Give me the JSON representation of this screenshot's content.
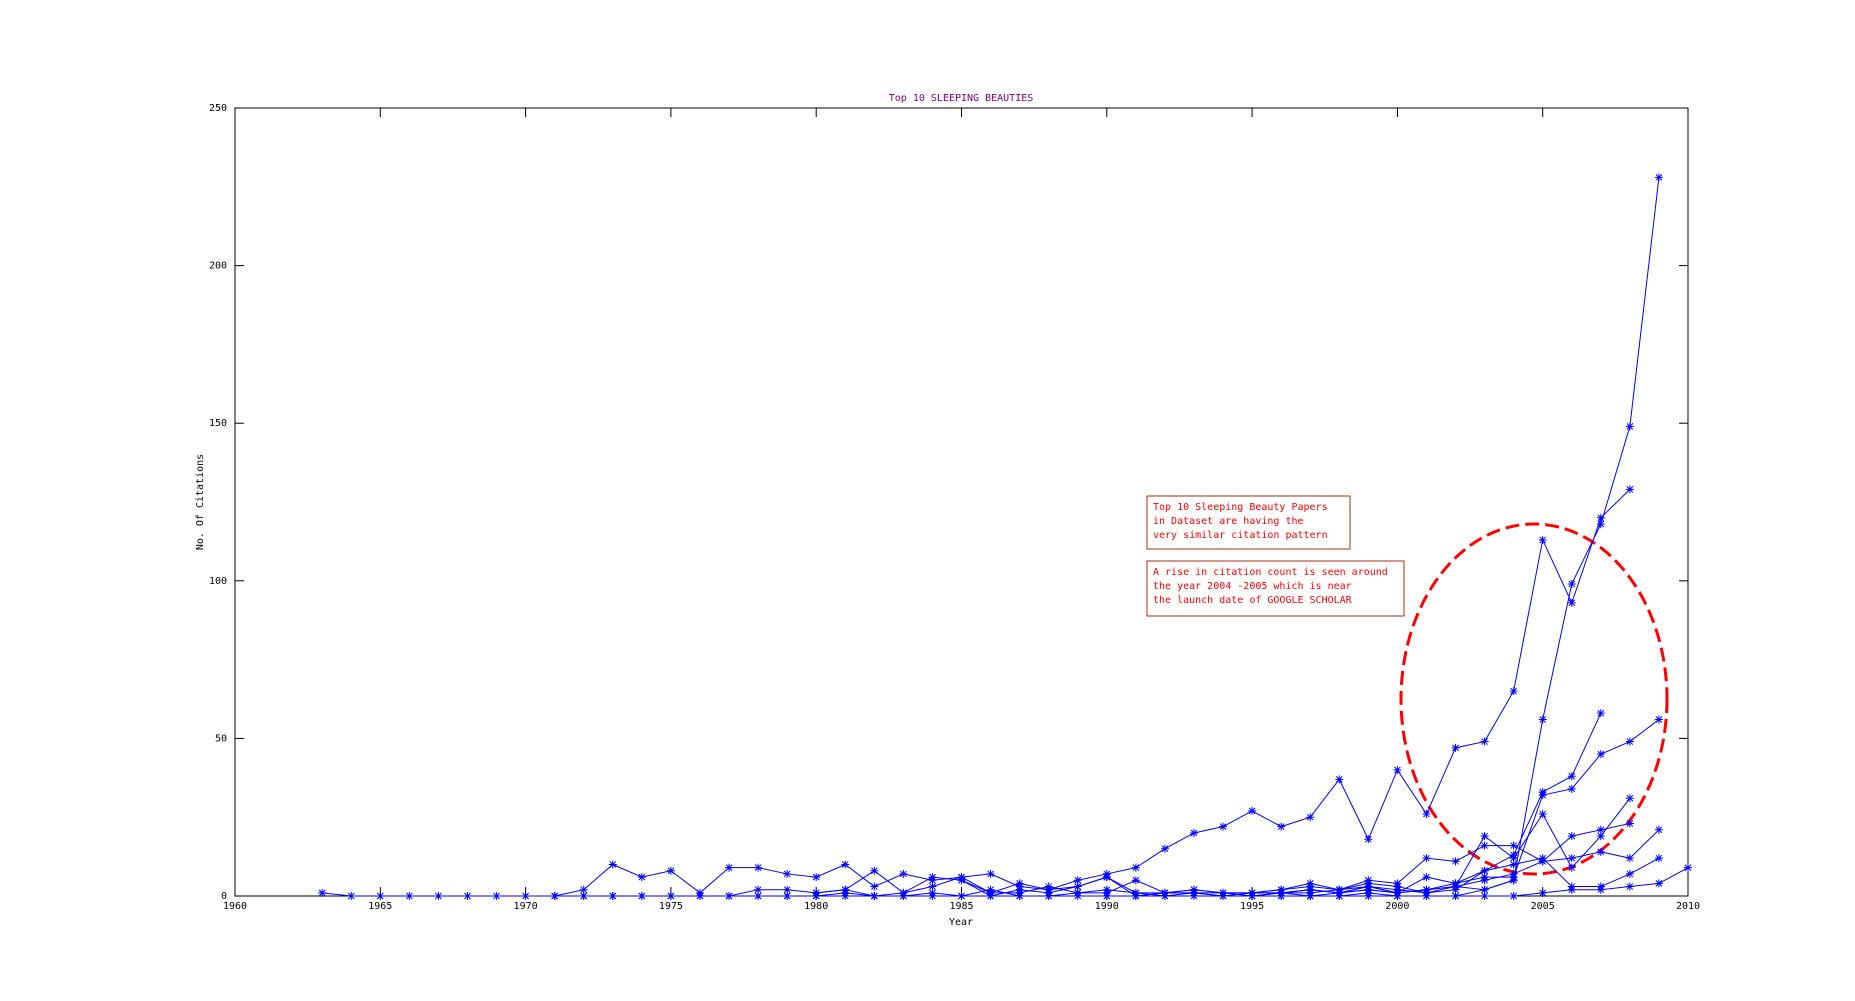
{
  "chart_data": {
    "type": "line",
    "title": "Top 10 SLEEPING BEAUTIES",
    "x_label": "Year",
    "y_label": "No. Of Citations",
    "xlim": [
      1960,
      2010
    ],
    "xticks": [
      1960,
      1965,
      1970,
      1975,
      1980,
      1985,
      1990,
      1995,
      2000,
      2005,
      2010
    ],
    "ylim": [
      0,
      250
    ],
    "yticks": [
      0,
      50,
      100,
      150,
      200,
      250
    ],
    "grid": false,
    "marker": "*",
    "series": [
      {
        "color": "#0000ff",
        "x": [
          1963,
          1964,
          1965,
          1966,
          1967,
          1968,
          1969,
          1970,
          1971,
          1972,
          1973,
          1974,
          1975,
          1976,
          1977,
          1978,
          1979,
          1980,
          1981,
          1982,
          1983,
          1984,
          1985,
          1986,
          1987,
          1988,
          1989,
          1990,
          1991,
          1992,
          1993,
          1994,
          1995,
          1996,
          1997,
          1998,
          1999,
          2000,
          2001,
          2002,
          2003,
          2004,
          2005,
          2006,
          2007,
          2008
        ],
        "values": [
          1,
          0,
          0,
          0,
          0,
          0,
          0,
          0,
          0,
          2,
          10,
          6,
          8,
          1,
          9,
          9,
          7,
          6,
          10,
          3,
          7,
          5,
          6,
          7,
          3,
          2,
          5,
          7,
          9,
          15,
          20,
          22,
          27,
          22,
          25,
          37,
          18,
          40,
          26,
          47,
          49,
          65,
          113,
          93,
          120,
          129
        ]
      },
      {
        "color": "#0000ff",
        "x": [
          1971,
          1972,
          1973,
          1974,
          1975,
          1976,
          1977,
          1978,
          1979,
          1980,
          1981,
          1982,
          1983,
          1984,
          1985,
          1986,
          1987,
          1988,
          1989,
          1990,
          1991,
          1992,
          1993,
          1994,
          1995,
          1996,
          1997,
          1998,
          1999,
          2000,
          2001,
          2002,
          2003,
          2004,
          2005,
          2006,
          2007,
          2008,
          2009
        ],
        "values": [
          0,
          0,
          0,
          0,
          0,
          0,
          0,
          0,
          0,
          0,
          1,
          0,
          0,
          1,
          0,
          2,
          0,
          0,
          1,
          2,
          1,
          0,
          1,
          1,
          0,
          1,
          1,
          2,
          3,
          2,
          1,
          3,
          2,
          5,
          56,
          99,
          118,
          149,
          228
        ]
      },
      {
        "color": "#0000ff",
        "x": [
          1985,
          1986,
          1987,
          1988,
          1989,
          1990,
          1991,
          1992,
          1993,
          1994,
          1995,
          1996,
          1997,
          1998,
          1999,
          2000,
          2001,
          2002,
          2003,
          2004,
          2005,
          2006,
          2007
        ],
        "values": [
          5,
          1,
          4,
          2,
          3,
          6,
          0,
          1,
          2,
          1,
          1,
          2,
          3,
          2,
          4,
          3,
          1,
          2,
          8,
          13,
          33,
          38,
          58
        ]
      },
      {
        "color": "#0000ff",
        "x": [
          1990,
          1991,
          1992,
          1993,
          1994,
          1995,
          1996,
          1997,
          1998,
          1999,
          2000,
          2001,
          2002,
          2003,
          2004,
          2005,
          2006,
          2007,
          2008,
          2009
        ],
        "values": [
          0,
          0,
          1,
          1,
          0,
          1,
          1,
          0,
          1,
          2,
          1,
          2,
          4,
          6,
          6,
          32,
          34,
          45,
          49,
          56
        ]
      },
      {
        "color": "#0000ff",
        "x": [
          1980,
          1981,
          1982,
          1983,
          1984,
          1985,
          1986,
          1987,
          1988,
          1989,
          1990,
          1991,
          1992,
          1993,
          1994,
          1995,
          1996,
          1997,
          1998,
          1999,
          2000,
          2001,
          2002,
          2003,
          2004,
          2005,
          2006,
          2007,
          2008
        ],
        "values": [
          1,
          2,
          0,
          1,
          6,
          5,
          0,
          2,
          1,
          3,
          6,
          1,
          1,
          2,
          1,
          1,
          1,
          2,
          1,
          3,
          1,
          2,
          3,
          19,
          12,
          26,
          9,
          19,
          31
        ]
      },
      {
        "color": "#0000ff",
        "x": [
          1995,
          1996,
          1997,
          1998,
          1999,
          2000,
          2001,
          2002,
          2003,
          2004,
          2005,
          2006,
          2007,
          2008
        ],
        "values": [
          0,
          1,
          2,
          1,
          2,
          1,
          2,
          3,
          5,
          7,
          11,
          19,
          21,
          23
        ]
      },
      {
        "color": "#0000ff",
        "x": [
          1995,
          1996,
          1997,
          1998,
          1999,
          2000,
          2001,
          2002,
          2003,
          2004,
          2005,
          2006,
          2007,
          2008,
          2009
        ],
        "values": [
          1,
          2,
          4,
          2,
          5,
          4,
          12,
          11,
          16,
          16,
          11,
          12,
          14,
          12,
          21
        ]
      },
      {
        "color": "#0000ff",
        "x": [
          1977,
          1978,
          1979,
          1980,
          1981,
          1982,
          1983,
          1984,
          1985,
          1986,
          1987,
          1988,
          1989,
          1990,
          1991,
          1992,
          1993,
          1994,
          1995,
          1996,
          1997,
          1998,
          1999,
          2000,
          2001,
          2002,
          2003,
          2004,
          2005,
          2006,
          2007,
          2008,
          2009
        ],
        "values": [
          0,
          2,
          2,
          1,
          2,
          8,
          1,
          3,
          6,
          1,
          1,
          3,
          1,
          1,
          5,
          1,
          1,
          0,
          0,
          1,
          2,
          1,
          3,
          1,
          6,
          4,
          8,
          10,
          12,
          3,
          3,
          7,
          12
        ]
      },
      {
        "color": "#0000ff",
        "x": [
          1996,
          1997,
          1998,
          1999,
          2000,
          2001,
          2002,
          2003,
          2004,
          2005,
          2006,
          2007,
          2008,
          2009,
          2010
        ],
        "values": [
          0,
          0,
          0,
          1,
          0,
          0,
          0,
          0,
          0,
          1,
          2,
          2,
          3,
          4,
          9
        ]
      },
      {
        "color": "#0000ff",
        "x": [
          1971,
          1972,
          1973,
          1974,
          1975,
          1976,
          1977,
          1978,
          1979,
          1980,
          1981,
          1982,
          1983,
          1984,
          1985,
          1986,
          1987,
          1988,
          1989,
          1990,
          1991,
          1992,
          1993,
          1994,
          1995,
          1996,
          1997,
          1998,
          1999,
          2000,
          2001,
          2002,
          2003,
          2004
        ],
        "values": [
          0,
          0,
          0,
          0,
          0,
          0,
          0,
          0,
          0,
          0,
          0,
          0,
          0,
          0,
          0,
          0,
          0,
          0,
          0,
          0,
          0,
          0,
          0,
          0,
          0,
          0,
          0,
          0,
          0,
          0,
          0,
          0,
          2,
          5
        ]
      }
    ],
    "annotations": [
      {
        "lines": [
          "Top 10 Sleeping Beauty Papers",
          "in Dataset are having the",
          "very similar citation pattern"
        ],
        "color": "#ff0000"
      },
      {
        "lines": [
          "A rise in citation count is seen around",
          "the year 2004 -2005 which is near",
          "the launch date of GOOGLE SCHOLAR"
        ],
        "color": "#ff0000"
      }
    ]
  }
}
